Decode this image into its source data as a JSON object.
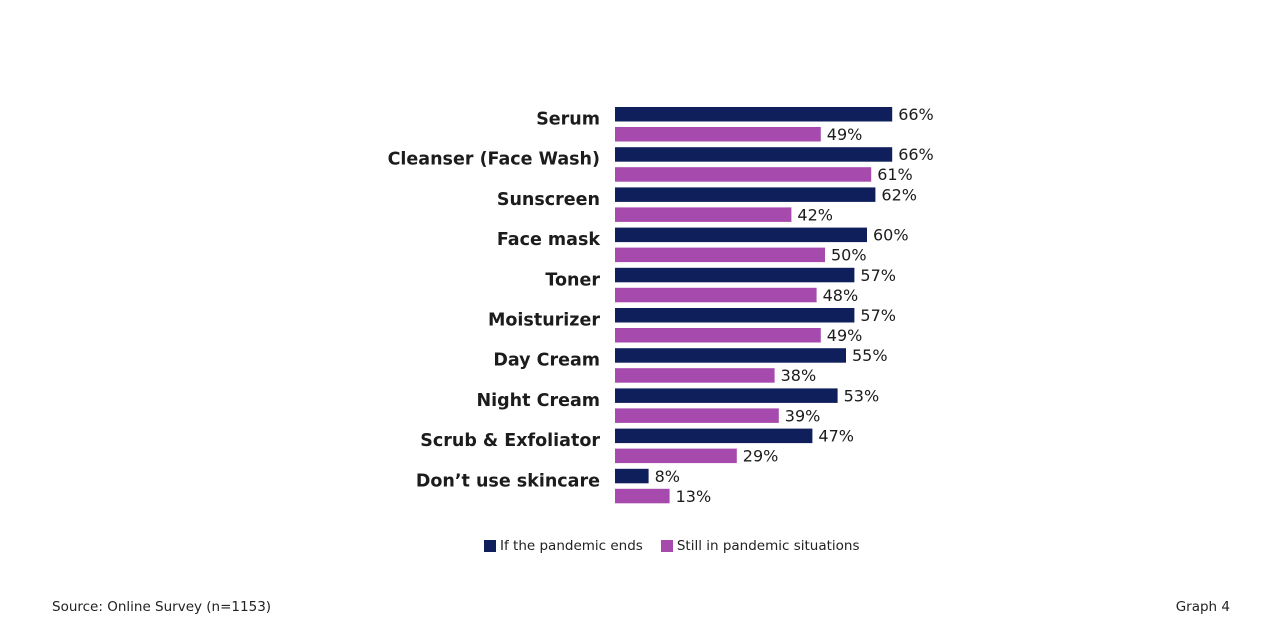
{
  "chart_data": {
    "type": "bar",
    "orientation": "horizontal",
    "categories": [
      "Serum",
      "Cleanser (Face Wash)",
      "Sunscreen",
      "Face mask",
      "Toner",
      "Moisturizer",
      "Day Cream",
      "Night Cream",
      "Scrub & Exfoliator",
      "Don’t use skincare"
    ],
    "series": [
      {
        "name": "If the pandemic ends",
        "color": "#0f1f5c",
        "values": [
          66,
          66,
          62,
          60,
          57,
          57,
          55,
          53,
          47,
          8
        ],
        "labels": [
          "66%",
          "66%",
          "62%",
          "60%",
          "57%",
          "57%",
          "55%",
          "53%",
          "47%",
          "8%"
        ]
      },
      {
        "name": "Still in pandemic situations",
        "color": "#a74aae",
        "values": [
          49,
          61,
          42,
          50,
          48,
          49,
          38,
          39,
          29,
          13
        ],
        "labels": [
          "49%",
          "61%",
          "42%",
          "50%",
          "48%",
          "49%",
          "38%",
          "39%",
          "29%",
          "13%"
        ]
      }
    ],
    "legend_position": "bottom",
    "grid": false
  },
  "footer": {
    "source": "Source: Online Survey (n=1153)",
    "graph_label": "Graph 4"
  }
}
